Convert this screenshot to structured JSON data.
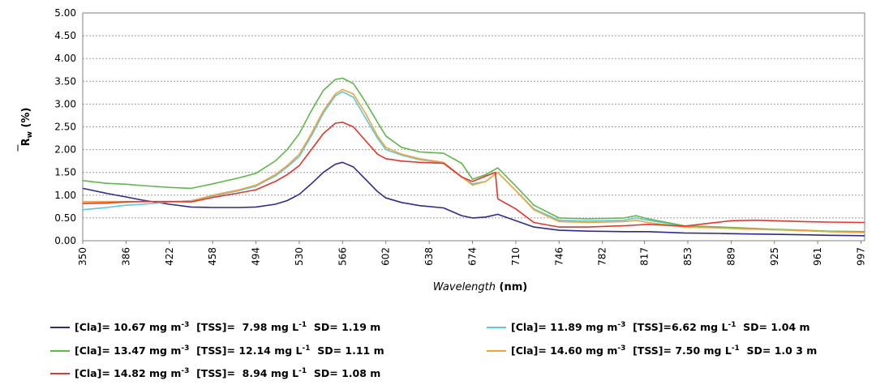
{
  "chart_data": {
    "type": "line",
    "xlabel": "Wavelength (nm)",
    "xlabel_main": "Wavelength",
    "xlabel_unit": "(nm)",
    "ylabel": "R̄w (%)",
    "ylabel_symbol": "R",
    "ylabel_sub": "w",
    "ylabel_unit": "(%)",
    "xlim": [
      350,
      1000
    ],
    "ylim": [
      0,
      5
    ],
    "grid": true,
    "legend_position": "bottom",
    "x_ticks": [
      "350",
      "386",
      "422",
      "458",
      "494",
      "530",
      "566",
      "602",
      "638",
      "674",
      "710",
      "746",
      "782",
      "817",
      "853",
      "889",
      "925",
      "961",
      "997"
    ],
    "y_ticks": [
      "0.00",
      "0.50",
      "1.00",
      "1.50",
      "2.00",
      "2.50",
      "3.00",
      "3.50",
      "4.00",
      "4.50",
      "5.00"
    ],
    "series": [
      {
        "name": "[Cla]= 10.67 mg m-3 [TSS]= 7.98 mg L-1 SD= 1.19 m",
        "legend_parts": [
          "[Cla]= 10.67 mg m",
          "-3",
          "  [TSS]=  7.98 mg L",
          "-1",
          "  SD= 1.19 m"
        ],
        "color": "#2e2a8c",
        "x": [
          350,
          370,
          386,
          400,
          422,
          440,
          458,
          480,
          494,
          510,
          520,
          530,
          540,
          550,
          560,
          566,
          575,
          585,
          595,
          602,
          615,
          630,
          650,
          665,
          674,
          685,
          695,
          710,
          725,
          746,
          770,
          800,
          820,
          850,
          880,
          900,
          925,
          950,
          970,
          1000
        ],
        "y": [
          1.15,
          1.04,
          0.96,
          0.89,
          0.8,
          0.74,
          0.73,
          0.73,
          0.74,
          0.8,
          0.88,
          1.02,
          1.25,
          1.5,
          1.68,
          1.72,
          1.62,
          1.35,
          1.08,
          0.94,
          0.84,
          0.77,
          0.72,
          0.55,
          0.5,
          0.52,
          0.58,
          0.44,
          0.3,
          0.23,
          0.21,
          0.2,
          0.2,
          0.17,
          0.16,
          0.15,
          0.14,
          0.13,
          0.12,
          0.11
        ]
      },
      {
        "name": "[Cla]= 11.89 mg m-3 [TSS]=6.62 mg L-1 SD= 1.04 m",
        "legend_parts": [
          "[Cla]= 11.89 mg m",
          "-3",
          "  [TSS]=6.62 mg L",
          "-1",
          "  SD= 1.04 m"
        ],
        "color": "#5bc8dc",
        "x": [
          350,
          370,
          386,
          400,
          422,
          440,
          458,
          480,
          494,
          510,
          520,
          530,
          540,
          550,
          560,
          566,
          575,
          585,
          595,
          602,
          615,
          630,
          650,
          665,
          674,
          685,
          695,
          710,
          725,
          746,
          770,
          800,
          810,
          820,
          850,
          880,
          900,
          925,
          950,
          970,
          1000
        ],
        "y": [
          0.68,
          0.73,
          0.78,
          0.8,
          0.85,
          0.88,
          0.98,
          1.1,
          1.2,
          1.42,
          1.62,
          1.85,
          2.3,
          2.8,
          3.18,
          3.27,
          3.15,
          2.7,
          2.25,
          2.0,
          1.88,
          1.78,
          1.7,
          1.4,
          1.25,
          1.3,
          1.5,
          1.1,
          0.7,
          0.45,
          0.43,
          0.45,
          0.5,
          0.45,
          0.32,
          0.28,
          0.26,
          0.24,
          0.22,
          0.2,
          0.18
        ]
      },
      {
        "name": "[Cla]= 13.47 mg m-3 [TSS]= 12.14 mg L-1 SD= 1.11 m",
        "legend_parts": [
          "[Cla]= 13.47 mg m",
          "-3",
          "  [TSS]= 12.14 mg L",
          "-1",
          "  SD= 1.11 m"
        ],
        "color": "#5fb84a",
        "x": [
          350,
          370,
          386,
          400,
          422,
          440,
          458,
          480,
          494,
          510,
          520,
          530,
          540,
          550,
          560,
          566,
          575,
          585,
          595,
          602,
          615,
          630,
          650,
          665,
          674,
          685,
          695,
          710,
          725,
          746,
          770,
          800,
          810,
          820,
          850,
          880,
          900,
          925,
          950,
          970,
          1000
        ],
        "y": [
          1.32,
          1.26,
          1.24,
          1.21,
          1.17,
          1.15,
          1.25,
          1.38,
          1.48,
          1.75,
          2.0,
          2.35,
          2.85,
          3.3,
          3.54,
          3.57,
          3.45,
          3.05,
          2.6,
          2.3,
          2.05,
          1.95,
          1.92,
          1.7,
          1.35,
          1.45,
          1.6,
          1.2,
          0.78,
          0.5,
          0.48,
          0.5,
          0.55,
          0.48,
          0.33,
          0.3,
          0.28,
          0.25,
          0.23,
          0.21,
          0.2
        ]
      },
      {
        "name": "[Cla]= 14.60 mg m-3 [TSS]= 7.50 mg L-1 SD= 1.0 3 m",
        "legend_parts": [
          "[Cla]= 14.60 mg m",
          "-3",
          "  [TSS]= 7.50 mg L",
          "-1",
          "  SD= 1.0 3 m"
        ],
        "color": "#f2a33a",
        "x": [
          350,
          370,
          386,
          400,
          422,
          440,
          458,
          480,
          494,
          510,
          520,
          530,
          540,
          550,
          560,
          566,
          575,
          585,
          595,
          602,
          615,
          630,
          650,
          665,
          674,
          685,
          695,
          710,
          725,
          746,
          770,
          800,
          810,
          820,
          850,
          880,
          900,
          925,
          950,
          970,
          1000
        ],
        "y": [
          0.86,
          0.86,
          0.86,
          0.86,
          0.86,
          0.87,
          1.0,
          1.12,
          1.22,
          1.45,
          1.65,
          1.9,
          2.35,
          2.85,
          3.22,
          3.32,
          3.22,
          2.8,
          2.3,
          2.05,
          1.9,
          1.8,
          1.72,
          1.4,
          1.22,
          1.3,
          1.5,
          1.1,
          0.68,
          0.42,
          0.4,
          0.42,
          0.45,
          0.4,
          0.3,
          0.28,
          0.26,
          0.24,
          0.22,
          0.2,
          0.18
        ]
      },
      {
        "name": "[Cla]= 14.82 mg m-3 [TSS]= 8.94 mg L-1 SD= 1.08 m",
        "legend_parts": [
          "[Cla]= 14.82 mg m",
          "-3",
          "  [TSS]=  8.94 mg L",
          "-1",
          "  SD= 1.08 m"
        ],
        "color": "#e8332a",
        "x": [
          350,
          370,
          386,
          400,
          422,
          440,
          458,
          480,
          494,
          510,
          520,
          530,
          540,
          550,
          560,
          566,
          575,
          585,
          595,
          602,
          615,
          630,
          650,
          665,
          674,
          685,
          693,
          695,
          710,
          725,
          746,
          770,
          800,
          820,
          850,
          870,
          889,
          910,
          925,
          950,
          970,
          1000
        ],
        "y": [
          0.82,
          0.83,
          0.85,
          0.86,
          0.86,
          0.85,
          0.95,
          1.05,
          1.12,
          1.3,
          1.45,
          1.65,
          2.0,
          2.35,
          2.58,
          2.6,
          2.5,
          2.2,
          1.9,
          1.8,
          1.75,
          1.72,
          1.7,
          1.4,
          1.3,
          1.42,
          1.5,
          0.92,
          0.7,
          0.4,
          0.3,
          0.3,
          0.33,
          0.36,
          0.32,
          0.38,
          0.44,
          0.45,
          0.44,
          0.42,
          0.41,
          0.4
        ]
      }
    ]
  }
}
